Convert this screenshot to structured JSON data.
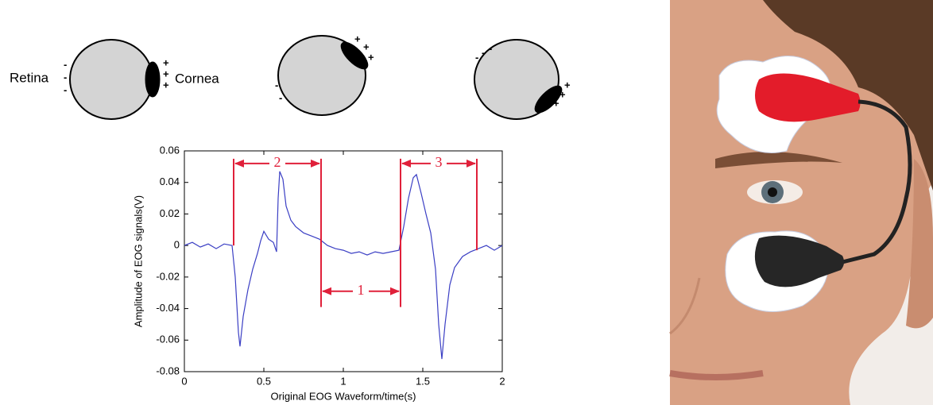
{
  "diagram": {
    "retina": "Retina",
    "cornea": "Cornea",
    "plus": "+",
    "minus": "-"
  },
  "chart_data": {
    "type": "line",
    "xlabel": "Original EOG Waveform/time(s)",
    "ylabel": "Amplitude of EOG signals(V)",
    "color": "#3b3fc4",
    "xlim": [
      0,
      2
    ],
    "ylim": [
      -0.08,
      0.06
    ],
    "xticks": [
      0,
      0.5,
      1,
      1.5,
      2
    ],
    "yticks": [
      0.06,
      0.04,
      0.02,
      0,
      -0.02,
      -0.04,
      -0.06,
      -0.08
    ],
    "x": [
      0,
      0.05,
      0.1,
      0.15,
      0.2,
      0.25,
      0.3,
      0.32,
      0.34,
      0.35,
      0.37,
      0.4,
      0.43,
      0.46,
      0.48,
      0.5,
      0.53,
      0.56,
      0.58,
      0.59,
      0.6,
      0.62,
      0.64,
      0.67,
      0.7,
      0.75,
      0.8,
      0.85,
      0.9,
      0.95,
      1.0,
      1.05,
      1.1,
      1.15,
      1.2,
      1.25,
      1.3,
      1.35,
      1.38,
      1.41,
      1.44,
      1.46,
      1.49,
      1.52,
      1.55,
      1.58,
      1.6,
      1.62,
      1.64,
      1.67,
      1.7,
      1.75,
      1.8,
      1.85,
      1.9,
      1.95,
      2.0
    ],
    "values": [
      0,
      0.002,
      -0.001,
      0.001,
      -0.002,
      0.001,
      0,
      -0.02,
      -0.055,
      -0.064,
      -0.045,
      -0.028,
      -0.015,
      -0.005,
      0.003,
      0.009,
      0.004,
      0.002,
      -0.004,
      0.03,
      0.047,
      0.042,
      0.025,
      0.016,
      0.012,
      0.008,
      0.006,
      0.004,
      0,
      -0.002,
      -0.003,
      -0.005,
      -0.004,
      -0.006,
      -0.004,
      -0.005,
      -0.004,
      -0.003,
      0.012,
      0.03,
      0.043,
      0.045,
      0.033,
      0.02,
      0.008,
      -0.015,
      -0.05,
      -0.072,
      -0.05,
      -0.025,
      -0.014,
      -0.007,
      -0.004,
      -0.002,
      0,
      -0.003,
      0
    ],
    "annotations": [
      {
        "text": "2",
        "x0": 0.31,
        "x1": 0.86,
        "y": 0.052
      },
      {
        "text": "1",
        "x0": 0.86,
        "x1": 1.36,
        "y": -0.029
      },
      {
        "text": "3",
        "x0": 1.36,
        "x1": 1.84,
        "y": 0.052
      }
    ],
    "markers": [
      {
        "x": 0.31,
        "y0": 0,
        "y1": 0.055
      },
      {
        "x": 0.86,
        "y0": -0.039,
        "y1": 0.055
      },
      {
        "x": 1.36,
        "y0": -0.039,
        "y1": 0.055
      },
      {
        "x": 1.84,
        "y0": -0.003,
        "y1": 0.055
      }
    ]
  }
}
